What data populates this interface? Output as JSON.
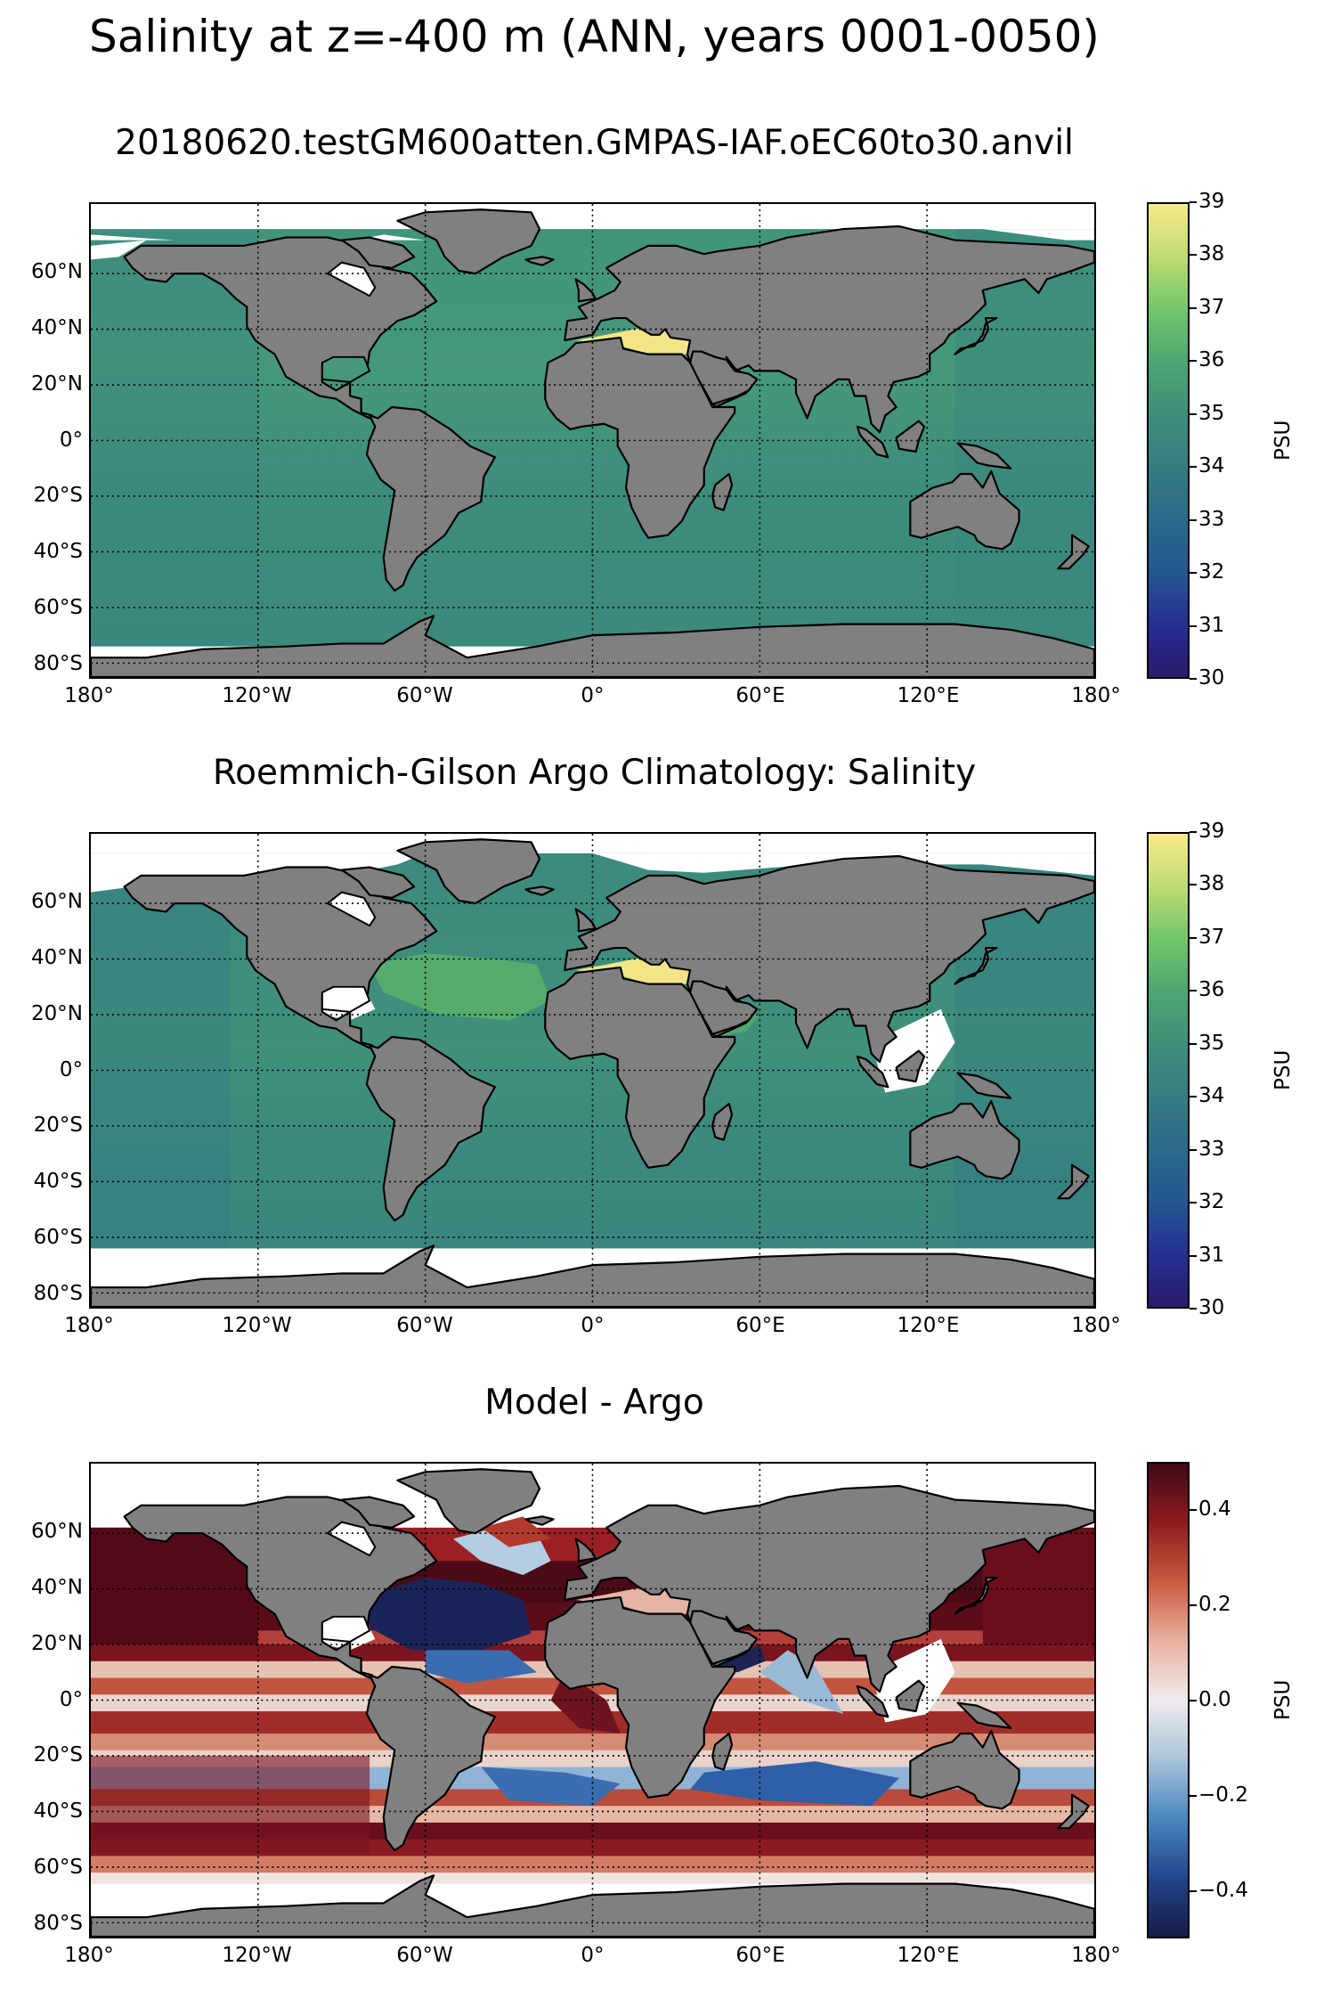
{
  "figure": {
    "suptitle": "Salinity at z=-400 m (ANN, years 0001-0050)"
  },
  "panels": [
    {
      "id": "model",
      "title": "20180620.testGM600atten.GMPAS-IAF.oEC60to30.anvil",
      "colormap": "haline",
      "colorbar": {
        "label": "PSU",
        "ticks": [
          "39",
          "38",
          "37",
          "36",
          "35",
          "34",
          "33",
          "32",
          "31",
          "30"
        ],
        "colors": [
          "#f9e98d",
          "#bfdc72",
          "#72c66a",
          "#4ea672",
          "#3f8f7a",
          "#377c82",
          "#2c6a8a",
          "#245790",
          "#262f93",
          "#2a1a6b"
        ]
      }
    },
    {
      "id": "obs",
      "title": "Roemmich-Gilson Argo Climatology: Salinity",
      "colormap": "haline",
      "colorbar": {
        "label": "PSU",
        "ticks": [
          "39",
          "38",
          "37",
          "36",
          "35",
          "34",
          "33",
          "32",
          "31",
          "30"
        ],
        "colors": [
          "#f9e98d",
          "#bfdc72",
          "#72c66a",
          "#4ea672",
          "#3f8f7a",
          "#377c82",
          "#2c6a8a",
          "#245790",
          "#262f93",
          "#2a1a6b"
        ]
      }
    },
    {
      "id": "bias",
      "title": "Model - Argo",
      "colormap": "balance",
      "colorbar": {
        "label": "PSU",
        "ticks": [
          "0.4",
          "0.2",
          "0.0",
          "−0.2",
          "−0.4"
        ],
        "colors": [
          "#3d0a16",
          "#8e1b1f",
          "#c9593f",
          "#e8b1a0",
          "#f1ecec",
          "#a9c3da",
          "#4a86c0",
          "#22468e",
          "#171a44"
        ]
      }
    }
  ],
  "axes": {
    "lat_labels": [
      "60°N",
      "40°N",
      "20°N",
      "0°",
      "20°S",
      "40°S",
      "60°S",
      "80°S"
    ],
    "lon_labels": [
      "180°",
      "120°W",
      "60°W",
      "0°",
      "60°E",
      "120°E",
      "180°"
    ]
  },
  "colors": {
    "land": "#808080",
    "ocean_model": "#3f8f7a",
    "ocean_obs": "#3d8b7c",
    "missing": "#ffffff"
  }
}
